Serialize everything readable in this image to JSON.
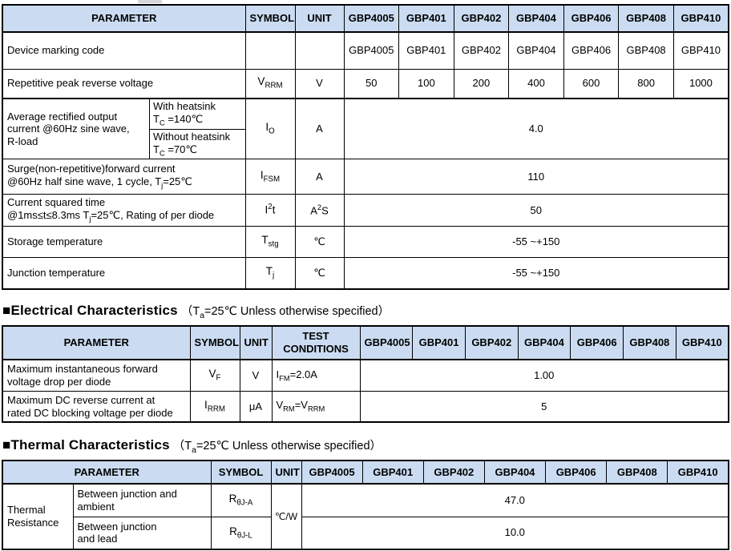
{
  "colors": {
    "header_bg": "#CBDCF2",
    "border": "#000000",
    "page_bg": "#FFFFFF"
  },
  "devices": [
    "GBP4005",
    "GBP401",
    "GBP402",
    "GBP404",
    "GBP406",
    "GBP408",
    "GBP410"
  ],
  "t1": {
    "header": {
      "parameter": "PARAMETER",
      "symbol": "SYMBOL",
      "unit": "UNIT"
    },
    "marking": {
      "label": "Device marking code"
    },
    "vrrm": {
      "label": "Repetitive peak reverse voltage",
      "symbol": [
        {
          "t": "V"
        },
        {
          "t": "RRM",
          "s": "sub"
        }
      ],
      "unit": "V",
      "values": [
        "50",
        "100",
        "200",
        "400",
        "600",
        "800",
        "1000"
      ]
    },
    "io": {
      "label": "Average rectified output\ncurrent @60Hz sine wave,\nR-load",
      "with_hs": "With heatsink",
      "with_hs_cond": [
        {
          "t": "T"
        },
        {
          "t": "C",
          "s": "sub"
        },
        {
          "t": " =140℃"
        }
      ],
      "without_hs": "Without heatsink",
      "without_hs_cond": [
        {
          "t": "T"
        },
        {
          "t": "C",
          "s": "sub"
        },
        {
          "t": " =70℃"
        }
      ],
      "symbol": [
        {
          "t": "I"
        },
        {
          "t": "O",
          "s": "sub"
        }
      ],
      "unit": "A",
      "value": "4.0"
    },
    "ifsm": {
      "line1": "Surge(non-repetitive)forward current",
      "line2": [
        {
          "t": "@60Hz half sine wave, 1 cycle, T"
        },
        {
          "t": "j",
          "s": "sub"
        },
        {
          "t": "=25℃"
        }
      ],
      "symbol": [
        {
          "t": "I"
        },
        {
          "t": "FSM",
          "s": "sub"
        }
      ],
      "unit": "A",
      "value": "110"
    },
    "i2t": {
      "line1": "Current squared time",
      "line2": [
        {
          "t": "@1ms≤t≤8.3ms T"
        },
        {
          "t": "j",
          "s": "sub"
        },
        {
          "t": "=25℃, Rating of per diode"
        }
      ],
      "symbol": [
        {
          "t": "I"
        },
        {
          "t": "2",
          "s": "sup"
        },
        {
          "t": "t"
        }
      ],
      "unit": [
        {
          "t": "A"
        },
        {
          "t": "2",
          "s": "sup"
        },
        {
          "t": "S"
        }
      ],
      "value": "50"
    },
    "tstg": {
      "label": "Storage temperature",
      "symbol": [
        {
          "t": "T"
        },
        {
          "t": "stg",
          "s": "sub"
        }
      ],
      "unit": "℃",
      "value": "-55 ~+150"
    },
    "tj": {
      "label": "Junction temperature",
      "symbol": [
        {
          "t": "T"
        },
        {
          "t": "j",
          "s": "sub"
        }
      ],
      "unit": "℃",
      "value": "-55 ~+150"
    }
  },
  "electrical": {
    "title": "■Electrical Characteristics",
    "condition": [
      {
        "t": "（T"
      },
      {
        "t": "a",
        "s": "sub"
      },
      {
        "t": "=25℃ Unless otherwise specified）"
      }
    ],
    "header": {
      "parameter": "PARAMETER",
      "symbol": "SYMBOL",
      "unit": "UNIT",
      "test_line1": "TEST",
      "test_line2": "CONDITIONS"
    },
    "vf": {
      "label": "Maximum instantaneous forward\nvoltage drop per diode",
      "symbol": [
        {
          "t": "V"
        },
        {
          "t": "F",
          "s": "sub"
        }
      ],
      "unit": "V",
      "test": [
        {
          "t": "I"
        },
        {
          "t": "FM",
          "s": "sub"
        },
        {
          "t": "=2.0A"
        }
      ],
      "value": "1.00"
    },
    "irrm": {
      "label": "Maximum DC reverse current at\nrated DC blocking voltage per diode",
      "symbol": [
        {
          "t": "I"
        },
        {
          "t": "RRM",
          "s": "sub"
        }
      ],
      "unit": "μA",
      "test": [
        {
          "t": "V"
        },
        {
          "t": "RM",
          "s": "sub"
        },
        {
          "t": "=V"
        },
        {
          "t": "RRM",
          "s": "sub"
        }
      ],
      "value": "5"
    }
  },
  "thermal": {
    "title": "■Thermal Characteristics",
    "condition": [
      {
        "t": "（T"
      },
      {
        "t": "a",
        "s": "sub"
      },
      {
        "t": "=25℃ Unless otherwise specified）"
      }
    ],
    "header": {
      "parameter": "PARAMETER",
      "symbol": "SYMBOL",
      "unit": "UNIT"
    },
    "group_label": "Thermal\nResistance",
    "unit": "℃/W",
    "rja": {
      "label": "Between junction and\nambient",
      "symbol": [
        {
          "t": "R"
        },
        {
          "t": "θJ-A",
          "s": "sub"
        }
      ],
      "value": "47.0"
    },
    "rjl": {
      "label": "Between junction\nand lead",
      "symbol": [
        {
          "t": "R"
        },
        {
          "t": "θJ-L",
          "s": "sub"
        }
      ],
      "value": "10.0"
    }
  }
}
